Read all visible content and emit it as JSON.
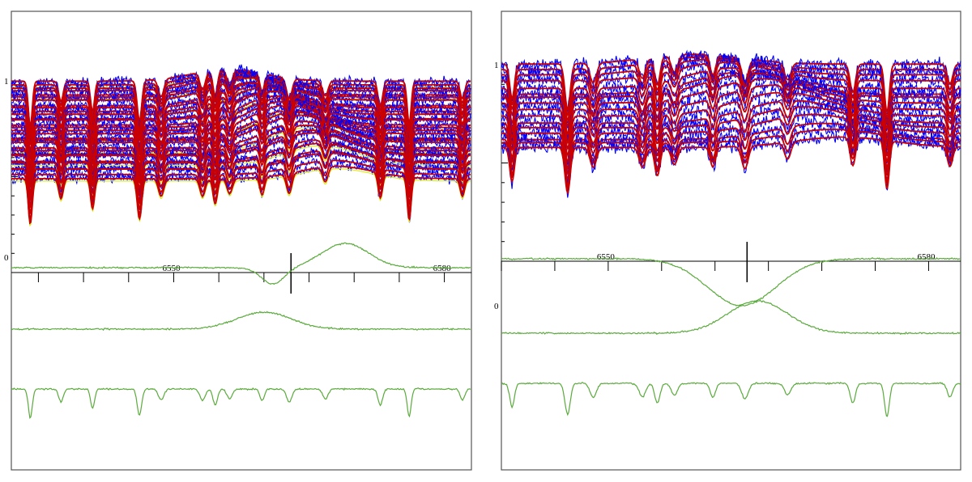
{
  "colors": {
    "observed": "#0000ff",
    "model": "#cc0000",
    "component": "#5aab3c",
    "accent": "#ddee22",
    "frame": "#555555"
  },
  "chart_data": [
    {
      "type": "line",
      "panel": "left",
      "xlim": [
        6532,
        6583
      ],
      "x_ticks": [
        {
          "value": 6550,
          "label": "6550"
        },
        {
          "value": 6580,
          "label": "6580"
        }
      ],
      "y_ticks": [
        {
          "value": 1,
          "label": "1"
        },
        {
          "value": 0,
          "label": "0"
        }
      ],
      "marker_wavelength": 6563,
      "n_spectra": 30,
      "series": [
        {
          "role": "observed-spectra",
          "color": "#0000ff"
        },
        {
          "role": "model-fits",
          "color": "#cc0000"
        },
        {
          "role": "component-1-broad-emission",
          "color": "#5aab3c",
          "center": 6568,
          "width": 3.2,
          "amplitude": 1.0
        },
        {
          "role": "component-2-broad-emission",
          "color": "#5aab3c",
          "center": 6555,
          "width": 4.5,
          "amplitude": 0.9
        },
        {
          "role": "component-3-absorption",
          "color": "#5aab3c"
        }
      ]
    },
    {
      "type": "line",
      "panel": "right",
      "xlim": [
        6540,
        6583
      ],
      "x_ticks": [
        {
          "value": 6550,
          "label": "6550"
        },
        {
          "value": 6580,
          "label": "6580"
        }
      ],
      "y_ticks": [
        {
          "value": 1,
          "label": "1"
        },
        {
          "value": 0,
          "label": "0"
        }
      ],
      "marker_wavelength": 6563,
      "n_spectra": 16,
      "series": [
        {
          "role": "observed-spectra",
          "color": "#0000ff"
        },
        {
          "role": "model-fits",
          "color": "#cc0000"
        },
        {
          "role": "component-1-broad-emission",
          "color": "#5aab3c",
          "center": 6572,
          "width": 4.0
        },
        {
          "role": "component-2-broad-emission",
          "color": "#5aab3c",
          "center": 6554,
          "width": 4.0
        },
        {
          "role": "component-3-absorption",
          "color": "#5aab3c"
        }
      ]
    }
  ]
}
